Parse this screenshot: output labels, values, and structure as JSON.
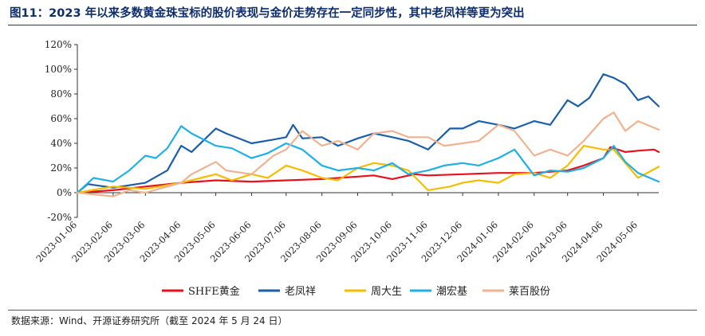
{
  "header": {
    "title": "图11：2023 年以来多数黄金珠宝标的股价表现与金价走势存在一定同步性，其中老凤祥等更为突出"
  },
  "footer": {
    "source": "数据来源：Wind、开源证券研究所（截至 2024 年 5 月 24 日）"
  },
  "chart_data": {
    "type": "line",
    "ylim": [
      -20,
      120
    ],
    "yticks": [
      "-20%",
      "0%",
      "20%",
      "40%",
      "60%",
      "80%",
      "100%",
      "120%"
    ],
    "ytick_values": [
      -20,
      0,
      20,
      40,
      60,
      80,
      100,
      120
    ],
    "y_unit": "%",
    "grid": false,
    "legend_position": "bottom",
    "x_range": [
      "2023-01-06",
      "2024-05-24"
    ],
    "x_tick_labels": [
      "2023-01-06",
      "2023-02-06",
      "2023-03-06",
      "2023-04-06",
      "2023-05-06",
      "2023-06-06",
      "2023-07-06",
      "2023-08-06",
      "2023-09-06",
      "2023-10-06",
      "2023-11-06",
      "2023-12-06",
      "2024-01-06",
      "2024-02-06",
      "2024-03-06",
      "2024-04-06",
      "2024-05-06"
    ],
    "series": [
      {
        "name": "SHFE黄金",
        "color": "#e8101b",
        "dates": [
          "2023-01-06",
          "2023-02-06",
          "2023-03-06",
          "2023-04-06",
          "2023-05-06",
          "2023-06-06",
          "2023-07-06",
          "2023-08-06",
          "2023-09-06",
          "2023-09-20",
          "2023-10-06",
          "2023-10-25",
          "2023-11-06",
          "2023-12-06",
          "2024-01-06",
          "2024-02-06",
          "2024-03-06",
          "2024-03-20",
          "2024-04-06",
          "2024-04-12",
          "2024-04-25",
          "2024-05-06",
          "2024-05-20",
          "2024-05-24"
        ],
        "values": [
          0,
          2,
          5,
          8,
          10,
          9,
          10,
          11,
          13,
          14,
          11,
          15,
          14,
          15,
          16,
          16,
          18,
          22,
          28,
          37,
          33,
          34,
          35,
          33
        ]
      },
      {
        "name": "老凤祥",
        "color": "#1b5fa8",
        "dates": [
          "2023-01-06",
          "2023-01-15",
          "2023-02-06",
          "2023-03-06",
          "2023-03-25",
          "2023-04-06",
          "2023-04-15",
          "2023-05-06",
          "2023-05-15",
          "2023-06-06",
          "2023-06-25",
          "2023-07-06",
          "2023-07-12",
          "2023-07-20",
          "2023-08-06",
          "2023-08-20",
          "2023-09-06",
          "2023-09-20",
          "2023-10-06",
          "2023-10-20",
          "2023-11-06",
          "2023-11-25",
          "2023-12-06",
          "2023-12-20",
          "2024-01-06",
          "2024-01-20",
          "2024-02-06",
          "2024-02-20",
          "2024-03-06",
          "2024-03-15",
          "2024-03-25",
          "2024-04-06",
          "2024-04-15",
          "2024-04-25",
          "2024-05-06",
          "2024-05-15",
          "2024-05-24"
        ],
        "values": [
          0,
          7,
          4,
          8,
          18,
          38,
          33,
          52,
          48,
          40,
          43,
          45,
          55,
          44,
          45,
          38,
          44,
          48,
          45,
          42,
          35,
          52,
          52,
          58,
          55,
          52,
          58,
          55,
          75,
          70,
          77,
          96,
          93,
          88,
          75,
          78,
          70
        ]
      },
      {
        "name": "周大生",
        "color": "#f5bd00",
        "dates": [
          "2023-01-06",
          "2023-02-06",
          "2023-03-06",
          "2023-04-06",
          "2023-05-06",
          "2023-05-20",
          "2023-06-06",
          "2023-06-20",
          "2023-07-06",
          "2023-07-20",
          "2023-08-06",
          "2023-08-20",
          "2023-09-06",
          "2023-09-20",
          "2023-10-06",
          "2023-10-20",
          "2023-11-06",
          "2023-11-25",
          "2023-12-06",
          "2023-12-20",
          "2024-01-06",
          "2024-01-20",
          "2024-02-06",
          "2024-02-20",
          "2024-03-06",
          "2024-03-20",
          "2024-04-06",
          "2024-04-15",
          "2024-05-06",
          "2024-05-24"
        ],
        "values": [
          0,
          5,
          3,
          8,
          15,
          10,
          15,
          12,
          22,
          18,
          12,
          10,
          20,
          24,
          22,
          18,
          2,
          5,
          8,
          10,
          8,
          15,
          16,
          12,
          22,
          38,
          35,
          35,
          12,
          21
        ]
      },
      {
        "name": "潮宏基",
        "color": "#1fb0e6",
        "dates": [
          "2023-01-06",
          "2023-01-20",
          "2023-02-06",
          "2023-02-20",
          "2023-03-06",
          "2023-03-15",
          "2023-03-25",
          "2023-04-06",
          "2023-04-15",
          "2023-05-06",
          "2023-05-20",
          "2023-06-06",
          "2023-06-20",
          "2023-07-06",
          "2023-07-20",
          "2023-08-06",
          "2023-08-20",
          "2023-09-06",
          "2023-09-20",
          "2023-10-06",
          "2023-10-20",
          "2023-11-06",
          "2023-11-20",
          "2023-12-06",
          "2023-12-20",
          "2024-01-06",
          "2024-01-20",
          "2024-02-06",
          "2024-02-20",
          "2024-03-06",
          "2024-03-20",
          "2024-04-06",
          "2024-04-15",
          "2024-04-25",
          "2024-05-06",
          "2024-05-24"
        ],
        "values": [
          0,
          12,
          9,
          18,
          30,
          28,
          36,
          54,
          48,
          38,
          36,
          28,
          32,
          40,
          35,
          22,
          18,
          20,
          18,
          24,
          15,
          18,
          22,
          24,
          22,
          28,
          35,
          14,
          18,
          17,
          20,
          28,
          38,
          25,
          16,
          9
        ]
      },
      {
        "name": "莱百股份",
        "color": "#f0b290",
        "dates": [
          "2023-01-06",
          "2023-02-06",
          "2023-02-20",
          "2023-03-06",
          "2023-04-06",
          "2023-04-15",
          "2023-05-06",
          "2023-05-15",
          "2023-06-06",
          "2023-06-25",
          "2023-07-06",
          "2023-07-20",
          "2023-08-06",
          "2023-08-20",
          "2023-09-06",
          "2023-09-20",
          "2023-10-06",
          "2023-10-20",
          "2023-11-06",
          "2023-11-20",
          "2023-12-06",
          "2023-12-20",
          "2024-01-06",
          "2024-01-20",
          "2024-02-06",
          "2024-02-20",
          "2024-03-06",
          "2024-03-20",
          "2024-04-06",
          "2024-04-15",
          "2024-04-25",
          "2024-05-06",
          "2024-05-24"
        ],
        "values": [
          0,
          -3,
          2,
          0,
          8,
          15,
          25,
          18,
          15,
          30,
          35,
          50,
          38,
          42,
          35,
          48,
          50,
          45,
          45,
          38,
          40,
          42,
          55,
          50,
          30,
          35,
          30,
          42,
          60,
          65,
          50,
          58,
          51
        ]
      }
    ]
  }
}
